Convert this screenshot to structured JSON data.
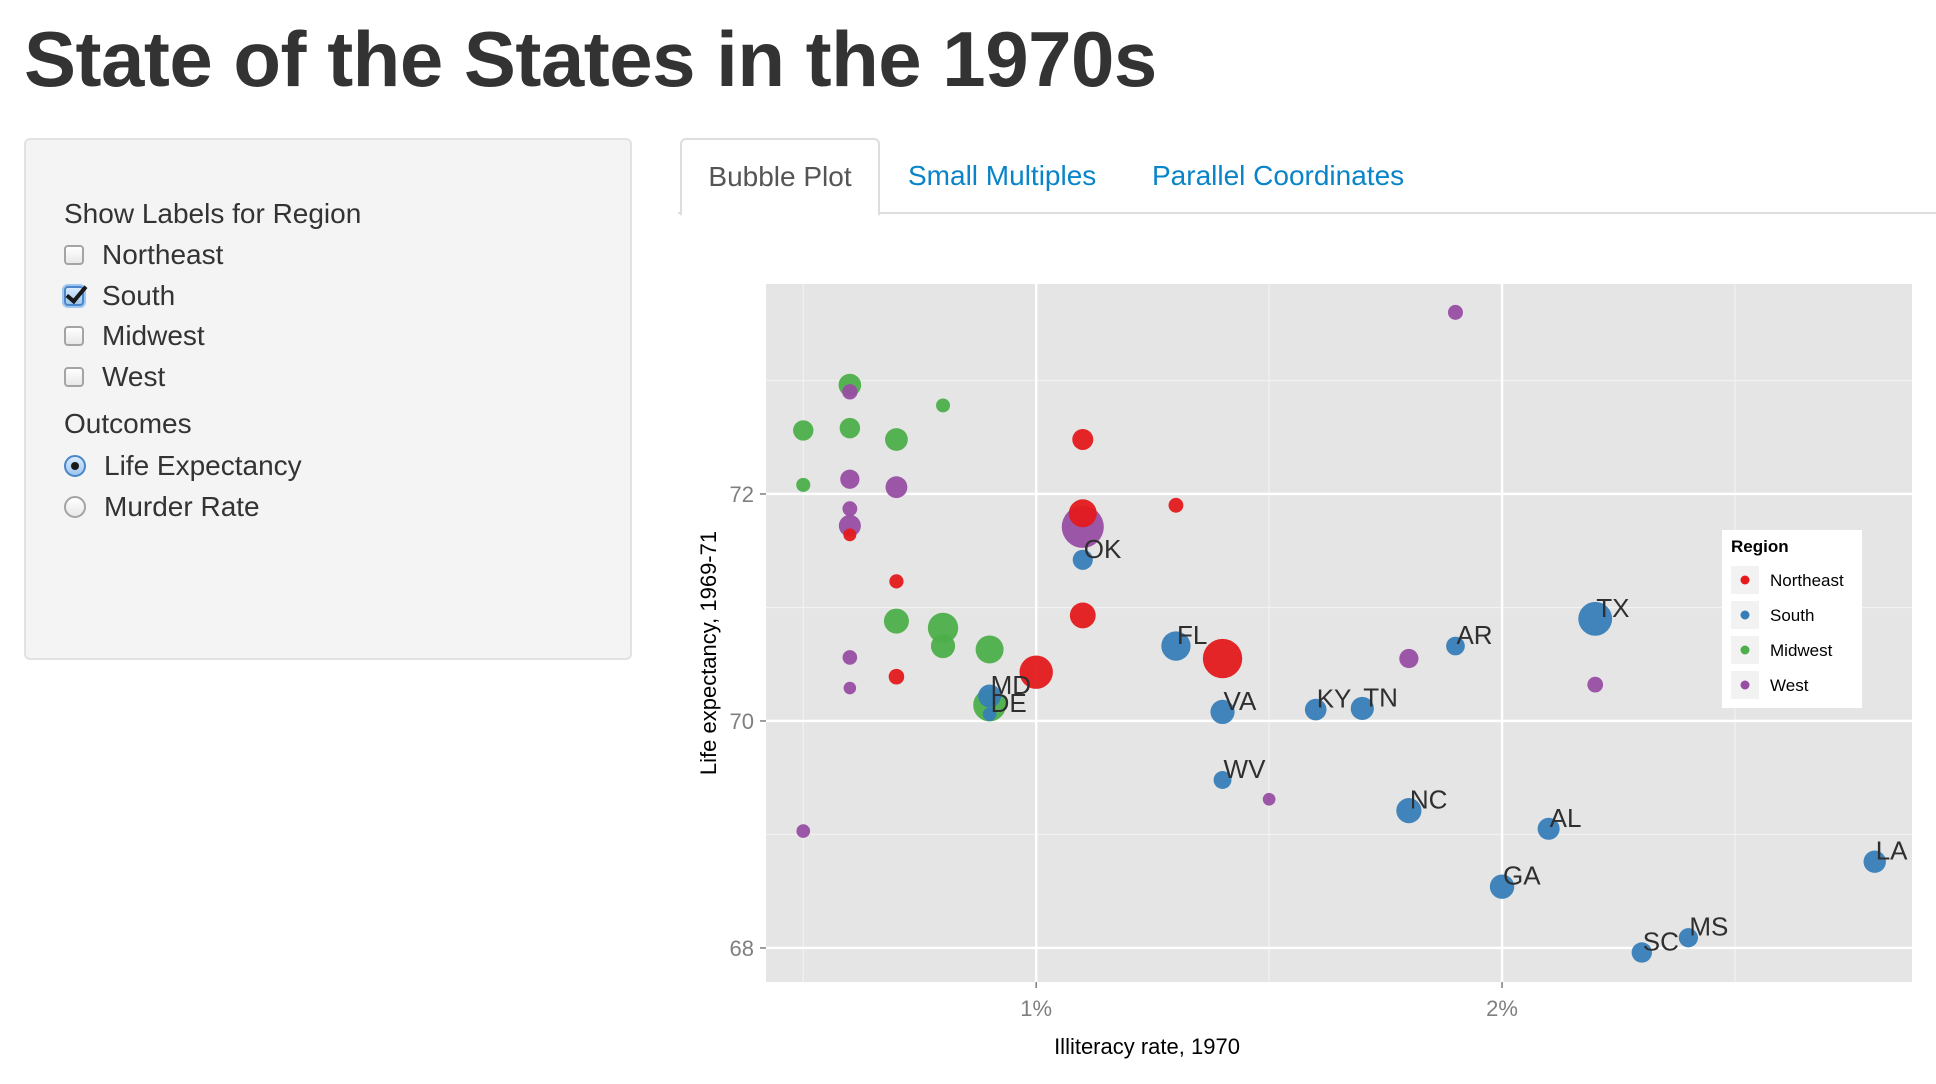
{
  "page": {
    "title": "State of the States in the 1970s"
  },
  "sidebar": {
    "labels_heading": "Show Labels for Region",
    "regions": [
      {
        "label": "Northeast",
        "checked": false
      },
      {
        "label": "South",
        "checked": true
      },
      {
        "label": "Midwest",
        "checked": false
      },
      {
        "label": "West",
        "checked": false
      }
    ],
    "outcomes_heading": "Outcomes",
    "outcomes": [
      {
        "label": "Life Expectancy",
        "checked": true
      },
      {
        "label": "Murder Rate",
        "checked": false
      }
    ]
  },
  "tabs": [
    {
      "label": "Bubble Plot",
      "active": true
    },
    {
      "label": "Small Multiples",
      "active": false
    },
    {
      "label": "Parallel Coordinates",
      "active": false
    }
  ],
  "chart_data": {
    "type": "scatter",
    "title": "",
    "xlabel": "Illiteracy rate, 1970",
    "ylabel": "Life expectancy, 1969-71",
    "xlim": [
      0.42,
      2.88
    ],
    "ylim": [
      67.7,
      73.85
    ],
    "x_ticks": [
      {
        "value": 1,
        "label": "1%"
      },
      {
        "value": 2,
        "label": "2%"
      }
    ],
    "y_ticks": [
      {
        "value": 68,
        "label": "68"
      },
      {
        "value": 70,
        "label": "70"
      },
      {
        "value": 72,
        "label": "72"
      }
    ],
    "grid": true,
    "legend": {
      "title": "Region",
      "placement": "right",
      "entries": [
        {
          "name": "Northeast",
          "color": "#e41a1c"
        },
        {
          "name": "South",
          "color": "#377eb8"
        },
        {
          "name": "Midwest",
          "color": "#4daf4a"
        },
        {
          "name": "West",
          "color": "#984ea3"
        }
      ]
    },
    "size_encoding": "population",
    "series": [
      {
        "name": "Northeast",
        "color": "#e41a1c",
        "points": [
          {
            "x": 1.1,
            "y": 72.48,
            "size": 3100
          },
          {
            "x": 1.3,
            "y": 71.9,
            "size": 850
          },
          {
            "x": 0.7,
            "y": 71.23,
            "size": 700
          },
          {
            "x": 1.1,
            "y": 71.83,
            "size": 7300
          },
          {
            "x": 1.1,
            "y": 70.93,
            "size": 5800
          },
          {
            "x": 1.0,
            "y": 70.43,
            "size": 11800
          },
          {
            "x": 1.4,
            "y": 70.55,
            "size": 18000
          },
          {
            "x": 0.7,
            "y": 70.39,
            "size": 1050
          },
          {
            "x": 0.6,
            "y": 71.64,
            "size": 450
          }
        ]
      },
      {
        "name": "South",
        "color": "#377eb8",
        "points": [
          {
            "x": 2.2,
            "y": 70.9,
            "size": 12200,
            "label": "TX"
          },
          {
            "x": 1.9,
            "y": 70.66,
            "size": 2100,
            "label": "AR"
          },
          {
            "x": 1.1,
            "y": 71.42,
            "size": 2700,
            "label": "OK"
          },
          {
            "x": 1.3,
            "y": 70.66,
            "size": 8300,
            "label": "FL"
          },
          {
            "x": 1.4,
            "y": 70.08,
            "size": 4800,
            "label": "VA"
          },
          {
            "x": 1.6,
            "y": 70.1,
            "size": 3400,
            "label": "KY"
          },
          {
            "x": 1.7,
            "y": 70.11,
            "size": 4200,
            "label": "TN"
          },
          {
            "x": 0.9,
            "y": 70.22,
            "size": 4100,
            "label": "MD"
          },
          {
            "x": 0.9,
            "y": 70.06,
            "size": 580,
            "label": "DE"
          },
          {
            "x": 1.4,
            "y": 69.48,
            "size": 1800,
            "label": "WV"
          },
          {
            "x": 1.8,
            "y": 69.21,
            "size": 5400,
            "label": "NC"
          },
          {
            "x": 2.1,
            "y": 69.05,
            "size": 3600,
            "label": "AL"
          },
          {
            "x": 2.8,
            "y": 68.76,
            "size": 3800,
            "label": "LA"
          },
          {
            "x": 2.0,
            "y": 68.54,
            "size": 4900,
            "label": "GA"
          },
          {
            "x": 2.4,
            "y": 68.09,
            "size": 2300,
            "label": "MS"
          },
          {
            "x": 2.3,
            "y": 67.96,
            "size": 2800,
            "label": "SC"
          }
        ]
      },
      {
        "name": "Midwest",
        "color": "#4daf4a",
        "points": [
          {
            "x": 0.6,
            "y": 72.96,
            "size": 3900
          },
          {
            "x": 0.6,
            "y": 72.58,
            "size": 2850
          },
          {
            "x": 0.5,
            "y": 72.56,
            "size": 2800
          },
          {
            "x": 0.7,
            "y": 72.48,
            "size": 4000
          },
          {
            "x": 0.8,
            "y": 72.78,
            "size": 640
          },
          {
            "x": 0.5,
            "y": 72.08,
            "size": 680
          },
          {
            "x": 0.7,
            "y": 70.88,
            "size": 5300
          },
          {
            "x": 0.8,
            "y": 70.82,
            "size": 9100
          },
          {
            "x": 0.8,
            "y": 70.66,
            "size": 4800
          },
          {
            "x": 0.9,
            "y": 70.63,
            "size": 7300
          },
          {
            "x": 0.9,
            "y": 70.14,
            "size": 11200
          }
        ]
      },
      {
        "name": "West",
        "color": "#984ea3",
        "points": [
          {
            "x": 1.9,
            "y": 73.6,
            "size": 900
          },
          {
            "x": 0.6,
            "y": 72.9,
            "size": 1000
          },
          {
            "x": 0.6,
            "y": 72.13,
            "size": 2300
          },
          {
            "x": 0.7,
            "y": 72.06,
            "size": 3500
          },
          {
            "x": 0.6,
            "y": 71.87,
            "size": 850
          },
          {
            "x": 1.1,
            "y": 71.71,
            "size": 21200
          },
          {
            "x": 0.6,
            "y": 71.72,
            "size": 3600
          },
          {
            "x": 0.6,
            "y": 70.56,
            "size": 800
          },
          {
            "x": 1.8,
            "y": 70.55,
            "size": 2300
          },
          {
            "x": 2.2,
            "y": 70.32,
            "size": 1100
          },
          {
            "x": 0.6,
            "y": 70.29,
            "size": 380
          },
          {
            "x": 1.5,
            "y": 69.31,
            "size": 400
          },
          {
            "x": 0.5,
            "y": 69.03,
            "size": 590
          }
        ]
      }
    ]
  }
}
